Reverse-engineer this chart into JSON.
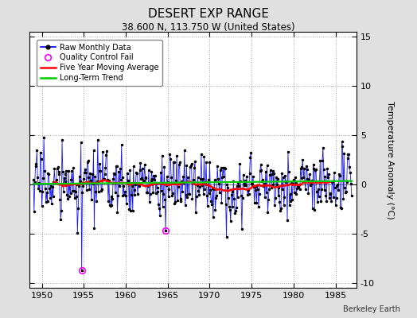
{
  "title": "DESERT EXP RANGE",
  "subtitle": "38.600 N, 113.750 W (United States)",
  "ylabel": "Temperature Anomaly (°C)",
  "credit": "Berkeley Earth",
  "ylim": [
    -10.5,
    15.5
  ],
  "xlim": [
    1948.5,
    1987.5
  ],
  "xticks": [
    1950,
    1955,
    1960,
    1965,
    1970,
    1975,
    1980,
    1985
  ],
  "yticks": [
    -10,
    -5,
    0,
    5,
    10,
    15
  ],
  "bg_color": "#e0e0e0",
  "plot_bg_color": "#ffffff",
  "raw_color": "#0000ff",
  "ma_color": "#ff0000",
  "trend_color": "#00cc00",
  "qc_color": "#ff00ff",
  "marker_color": "#000000",
  "seed": 17,
  "start_year": 1949,
  "end_year": 1986,
  "months": 12,
  "title_fontsize": 11,
  "subtitle_fontsize": 8.5,
  "tick_fontsize": 8,
  "ylabel_fontsize": 8,
  "legend_fontsize": 7,
  "credit_fontsize": 7
}
